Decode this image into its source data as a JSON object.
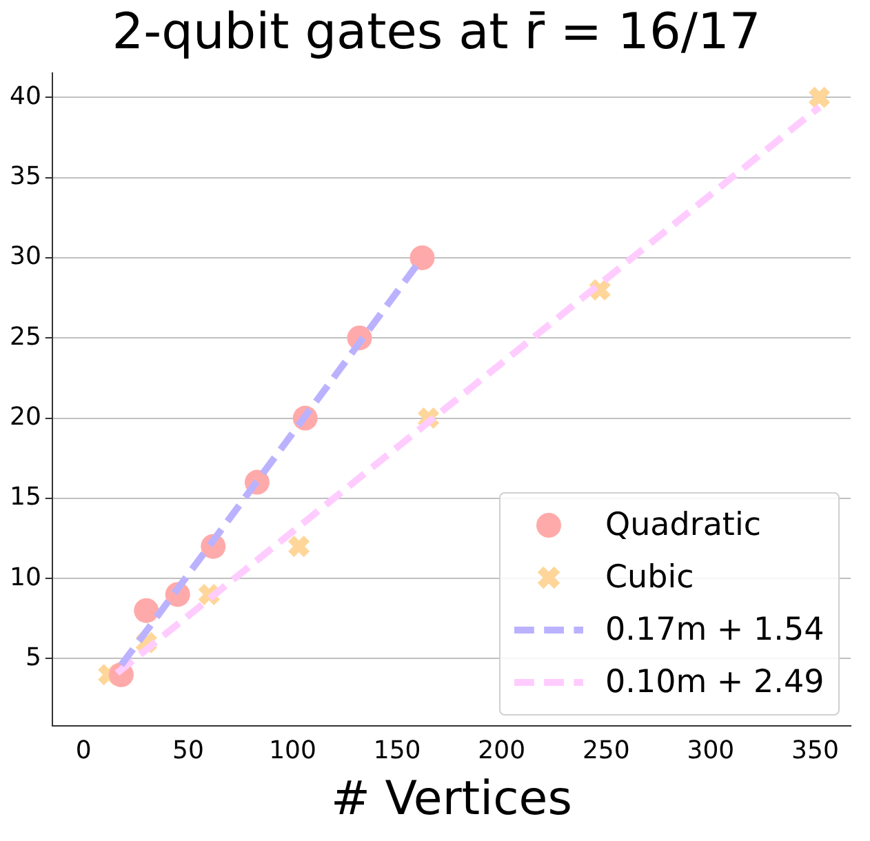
{
  "chart_data": {
    "type": "scatter",
    "title": "2-qubit gates at r̄ = 16/17",
    "xlabel": "# Vertices",
    "series": [
      {
        "name": "Quadratic",
        "type": "scatter",
        "marker": "circle",
        "color": "#ffaaaa",
        "x": [
          18,
          30,
          45,
          62,
          83,
          106,
          132,
          162
        ],
        "values": [
          4,
          8,
          9,
          12,
          16,
          20,
          25,
          30
        ]
      },
      {
        "name": "Cubic",
        "type": "scatter",
        "marker": "cross",
        "color": "#ffd699",
        "x": [
          12,
          30,
          60,
          103,
          165,
          247,
          352
        ],
        "values": [
          4,
          6,
          9,
          12,
          20,
          28,
          40
        ]
      },
      {
        "name": "0.17m + 1.54",
        "type": "line",
        "marker": "none",
        "line_style": "dashed",
        "color": "#bbb2ff",
        "x": [
          18,
          162
        ],
        "values": [
          4.6,
          30
        ]
      },
      {
        "name": "0.10m + 2.49",
        "type": "line",
        "marker": "none",
        "line_style": "dashed",
        "color": "#ffccff",
        "x": [
          16,
          352
        ],
        "values": [
          4.1,
          39.4
        ]
      }
    ],
    "xlim": [
      -15,
      367
    ],
    "ylim": [
      0.8,
      41.5
    ],
    "xticks": [
      0,
      50,
      100,
      150,
      200,
      250,
      300,
      350
    ],
    "yticks": [
      5,
      10,
      15,
      20,
      25,
      30,
      35,
      40
    ],
    "grid": "y",
    "legend": "bottom right"
  }
}
